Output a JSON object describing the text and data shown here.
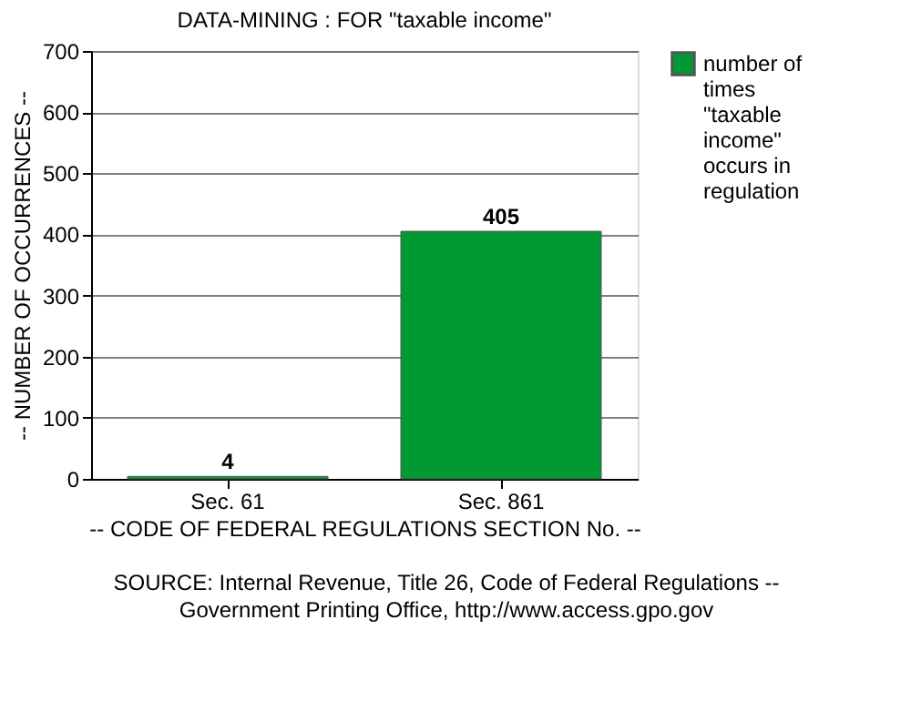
{
  "chart_data": {
    "type": "bar",
    "title": "DATA-MINING : FOR \"taxable income\"",
    "xlabel": "-- CODE OF FEDERAL REGULATIONS SECTION No. --",
    "ylabel": "-- NUMBER OF OCCURRENCES --",
    "categories": [
      "Sec. 61",
      "Sec. 861"
    ],
    "series": [
      {
        "name": "number of times \"taxable income\" occurs in regulation",
        "color": "#009933",
        "values": [
          4,
          405
        ]
      }
    ],
    "ylim": [
      0,
      700
    ],
    "yticks": [
      0,
      100,
      200,
      300,
      400,
      500,
      600,
      700
    ],
    "grid": "y",
    "legend": "right",
    "data_labels": true,
    "annotations": [
      "SOURCE: Internal Revenue, Title 26, Code of Federal Regulations -- Government Printing Office, http://www.access.gpo.gov"
    ]
  }
}
